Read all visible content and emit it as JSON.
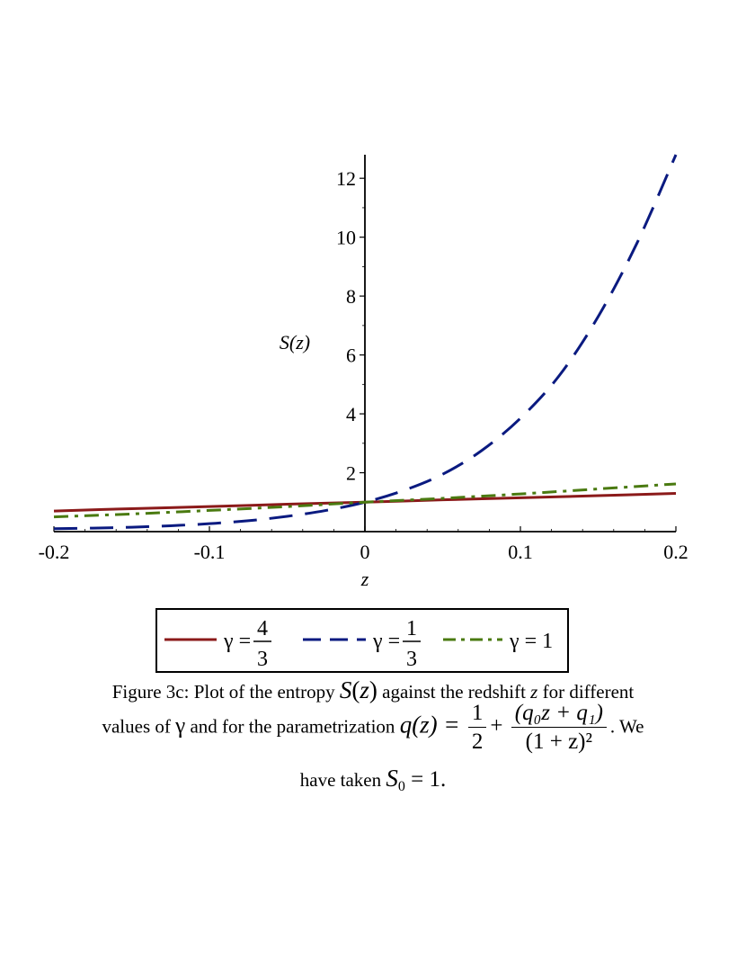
{
  "chart_data": {
    "type": "line",
    "xlabel": "z",
    "ylabel": "S(z)",
    "xlim": [
      -0.2,
      0.2
    ],
    "ylim": [
      0,
      12.8
    ],
    "x_ticks": [
      "-0.2",
      "-0.1",
      "0",
      "0.1",
      "0.2"
    ],
    "x_tick_values": [
      -0.2,
      -0.1,
      0,
      0.1,
      0.2
    ],
    "y_ticks": [
      "2",
      "4",
      "6",
      "8",
      "10",
      "12"
    ],
    "y_tick_values": [
      2,
      4,
      6,
      8,
      10,
      12
    ],
    "legend_position": "bottom",
    "series": [
      {
        "name_prefix": "γ =",
        "frac_num": "4",
        "frac_den": "3",
        "color": "#8b1a1a",
        "style": "solid",
        "x": [
          -0.2,
          -0.15,
          -0.1,
          -0.05,
          0,
          0.05,
          0.1,
          0.15,
          0.2
        ],
        "y": [
          0.7,
          0.78,
          0.85,
          0.93,
          1.0,
          1.08,
          1.15,
          1.22,
          1.3
        ]
      },
      {
        "name_prefix": "γ =",
        "frac_num": "1",
        "frac_den": "3",
        "color": "#0a1a80",
        "style": "dashed",
        "x": [
          -0.2,
          -0.175,
          -0.15,
          -0.125,
          -0.1,
          -0.075,
          -0.05,
          -0.025,
          0,
          0.025,
          0.05,
          0.075,
          0.1,
          0.125,
          0.15,
          0.175,
          0.2
        ],
        "y": [
          0.1,
          0.12,
          0.15,
          0.2,
          0.27,
          0.37,
          0.52,
          0.72,
          1.0,
          1.4,
          1.95,
          2.75,
          3.85,
          5.3,
          7.3,
          9.8,
          12.8
        ]
      },
      {
        "name_prefix": "γ = 1",
        "frac_num": "",
        "frac_den": "",
        "color": "#4a7a10",
        "style": "dashdot",
        "x": [
          -0.2,
          -0.15,
          -0.1,
          -0.05,
          0,
          0.05,
          0.1,
          0.15,
          0.2
        ],
        "y": [
          0.5,
          0.6,
          0.72,
          0.85,
          1.0,
          1.13,
          1.28,
          1.45,
          1.62
        ]
      }
    ]
  },
  "caption": {
    "line1_a": "Figure 3c: Plot of the entropy ",
    "line1_S": "S",
    "line1_z": "(z)",
    "line1_b": " against the redshift ",
    "line1_zvar": "z",
    "line1_c": " for different",
    "line2_a": "values of ",
    "line2_gamma": "γ",
    "line2_b": " and for the parametrization ",
    "line2_q": "q(z) =",
    "line2_half_num": "1",
    "line2_half_den": "2",
    "line2_plus": "+",
    "line2_num": "(q₀z + q₁)",
    "line2_den": "(1 + z)²",
    "line2_c": ". We",
    "line3_a": "have taken ",
    "line3_S0": "S",
    "line3_sub": "0",
    "line3_b": " = 1."
  }
}
